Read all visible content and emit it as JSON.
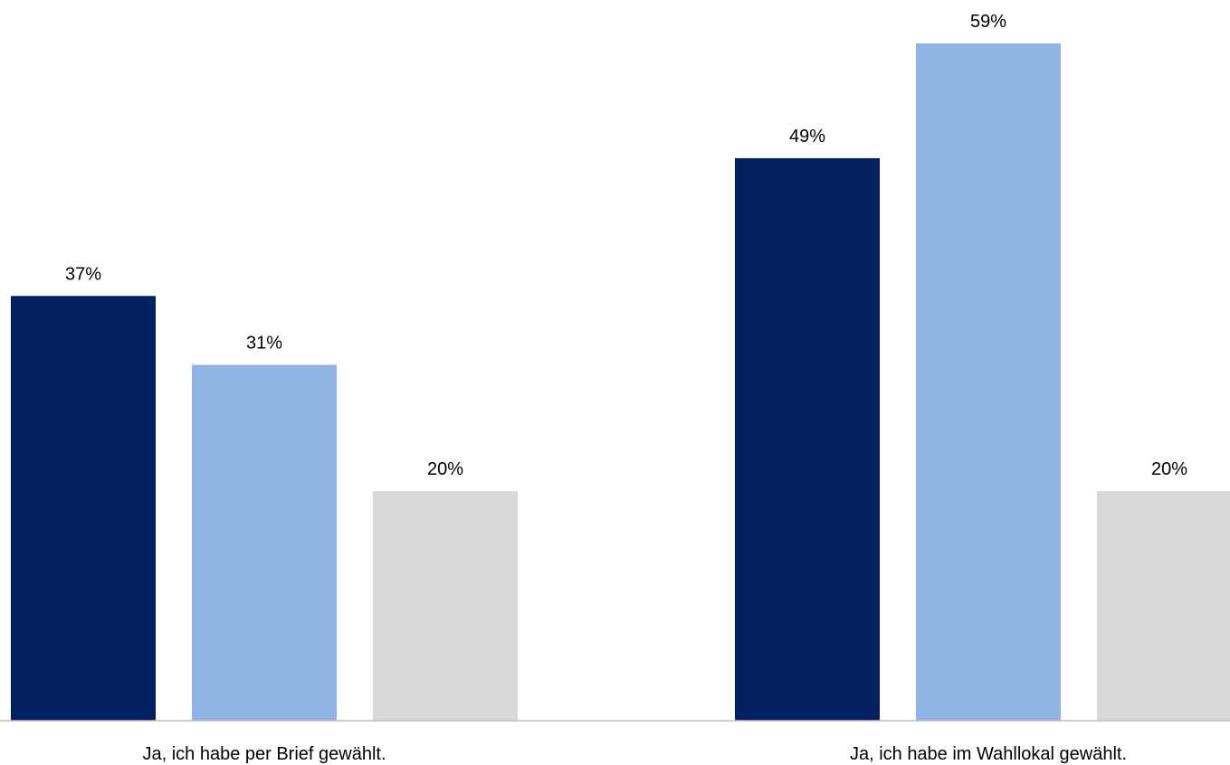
{
  "chart_data": {
    "type": "bar",
    "categories": [
      "Ja, ich habe per Brief gewählt.",
      "Ja, ich habe im Wahllokal gewählt."
    ],
    "series": [
      {
        "values": [
          37,
          49
        ],
        "labels": [
          "37%",
          "49%"
        ],
        "color": "#002060"
      },
      {
        "values": [
          31,
          59
        ],
        "labels": [
          "31%",
          "59%"
        ],
        "color": "#8FB3E2"
      },
      {
        "values": [
          20,
          20
        ],
        "labels": [
          "20%",
          "20%"
        ],
        "color": "#D9D9D9"
      }
    ],
    "title": "",
    "xlabel": "",
    "ylabel": "",
    "ylim": [
      0,
      60
    ],
    "grid": false,
    "axis_color": "#BFBFBF"
  }
}
